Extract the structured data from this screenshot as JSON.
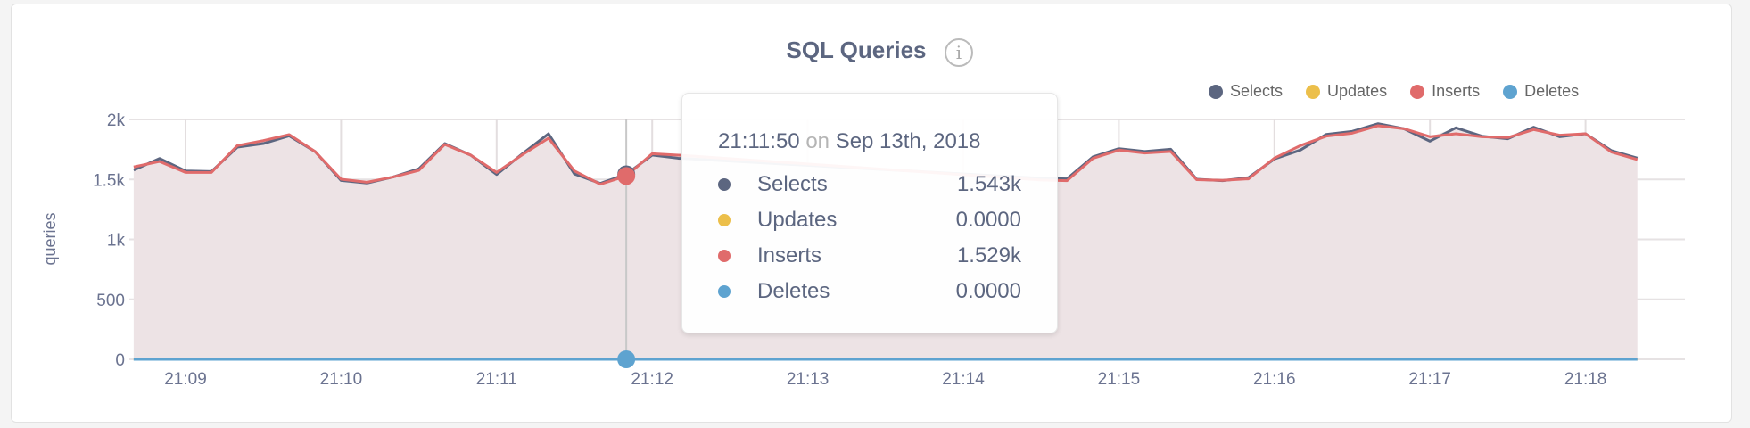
{
  "header": {
    "title": "SQL Queries",
    "info_icon": "info-circle-icon"
  },
  "legend": [
    {
      "label": "Selects",
      "color": "#5c6680"
    },
    {
      "label": "Updates",
      "color": "#ecbf4a"
    },
    {
      "label": "Inserts",
      "color": "#e06b6b"
    },
    {
      "label": "Deletes",
      "color": "#5ea3d0"
    }
  ],
  "tooltip": {
    "time": "21:11:50",
    "on": "on",
    "date": "Sep 13th, 2018",
    "rows": [
      {
        "label": "Selects",
        "value": "1.543k",
        "color": "#5c6680"
      },
      {
        "label": "Updates",
        "value": "0.0000",
        "color": "#ecbf4a"
      },
      {
        "label": "Inserts",
        "value": "1.529k",
        "color": "#e06b6b"
      },
      {
        "label": "Deletes",
        "value": "0.0000",
        "color": "#5ea3d0"
      }
    ]
  },
  "chart_data": {
    "type": "area",
    "title": "SQL Queries",
    "ylabel": "queries",
    "xlabel": "",
    "ylim": [
      0,
      2000
    ],
    "yticks": [
      {
        "value": 0,
        "label": "0"
      },
      {
        "value": 500,
        "label": "500"
      },
      {
        "value": 1000,
        "label": "1k"
      },
      {
        "value": 1500,
        "label": "1.5k"
      },
      {
        "value": 2000,
        "label": "2k"
      }
    ],
    "xticks": [
      "21:09",
      "21:10",
      "21:11",
      "21:12",
      "21:13",
      "21:14",
      "21:15",
      "21:16",
      "21:17",
      "21:18"
    ],
    "grid": true,
    "legend_position": "top-right",
    "hover_time": "21:11:50",
    "x": [
      "21:08:40",
      "21:08:50",
      "21:09:00",
      "21:09:10",
      "21:09:20",
      "21:09:30",
      "21:09:40",
      "21:09:50",
      "21:10:00",
      "21:10:10",
      "21:10:20",
      "21:10:30",
      "21:10:40",
      "21:10:50",
      "21:11:00",
      "21:11:10",
      "21:11:20",
      "21:11:30",
      "21:11:40",
      "21:11:50",
      "21:12:00",
      "21:12:10",
      "21:12:20",
      "21:12:30",
      "21:12:40",
      "21:12:50",
      "21:13:00",
      "21:13:10",
      "21:13:20",
      "21:13:30",
      "21:13:40",
      "21:13:50",
      "21:14:00",
      "21:14:10",
      "21:14:20",
      "21:14:30",
      "21:14:40",
      "21:14:50",
      "21:15:00",
      "21:15:10",
      "21:15:20",
      "21:15:30",
      "21:15:40",
      "21:15:50",
      "21:16:00",
      "21:16:10",
      "21:16:20",
      "21:16:30",
      "21:16:40",
      "21:16:50",
      "21:17:00",
      "21:17:10",
      "21:17:20",
      "21:17:30",
      "21:17:40",
      "21:17:50",
      "21:18:00",
      "21:18:10",
      "21:18:20"
    ],
    "series": [
      {
        "name": "Selects",
        "color": "#5c6680",
        "values": [
          1578,
          1675,
          1571,
          1566,
          1769,
          1799,
          1864,
          1732,
          1492,
          1470,
          1520,
          1589,
          1799,
          1703,
          1541,
          1715,
          1881,
          1546,
          1467,
          1543,
          1703,
          1677,
          null,
          null,
          null,
          null,
          null,
          null,
          null,
          null,
          null,
          null,
          null,
          null,
          null,
          1510,
          1505,
          1688,
          1757,
          1733,
          1752,
          1502,
          1490,
          1515,
          1671,
          1745,
          1876,
          1901,
          1965,
          1923,
          1819,
          1931,
          1861,
          1839,
          1936,
          1856,
          1881,
          1740,
          1678
        ]
      },
      {
        "name": "Updates",
        "color": "#ecbf4a",
        "values": [
          0,
          0,
          0,
          0,
          0,
          0,
          0,
          0,
          0,
          0,
          0,
          0,
          0,
          0,
          0,
          0,
          0,
          0,
          0,
          0,
          0,
          0,
          0,
          0,
          0,
          0,
          0,
          0,
          0,
          0,
          0,
          0,
          0,
          0,
          0,
          0,
          0,
          0,
          0,
          0,
          0,
          0,
          0,
          0,
          0,
          0,
          0,
          0,
          0,
          0,
          0,
          0,
          0,
          0,
          0,
          0,
          0,
          0,
          0
        ]
      },
      {
        "name": "Inserts",
        "color": "#e06b6b",
        "values": [
          1604,
          1650,
          1559,
          1559,
          1782,
          1824,
          1874,
          1732,
          1502,
          1477,
          1520,
          1576,
          1792,
          1703,
          1559,
          1707,
          1844,
          1571,
          1460,
          1529,
          1715,
          1703,
          null,
          null,
          null,
          null,
          null,
          null,
          null,
          null,
          null,
          null,
          null,
          null,
          null,
          1495,
          1490,
          1676,
          1745,
          1720,
          1733,
          1498,
          1493,
          1505,
          1678,
          1782,
          1861,
          1886,
          1948,
          1923,
          1856,
          1881,
          1856,
          1849,
          1916,
          1869,
          1881,
          1728,
          1666
        ]
      },
      {
        "name": "Deletes",
        "color": "#5ea3d0",
        "values": [
          0,
          0,
          0,
          0,
          0,
          0,
          0,
          0,
          0,
          0,
          0,
          0,
          0,
          0,
          0,
          0,
          0,
          0,
          0,
          0,
          0,
          0,
          0,
          0,
          0,
          0,
          0,
          0,
          0,
          0,
          0,
          0,
          0,
          0,
          0,
          0,
          0,
          0,
          0,
          0,
          0,
          0,
          0,
          0,
          0,
          0,
          0,
          0,
          0,
          0,
          0,
          0,
          0,
          0,
          0,
          0,
          0,
          0,
          0
        ]
      }
    ]
  }
}
